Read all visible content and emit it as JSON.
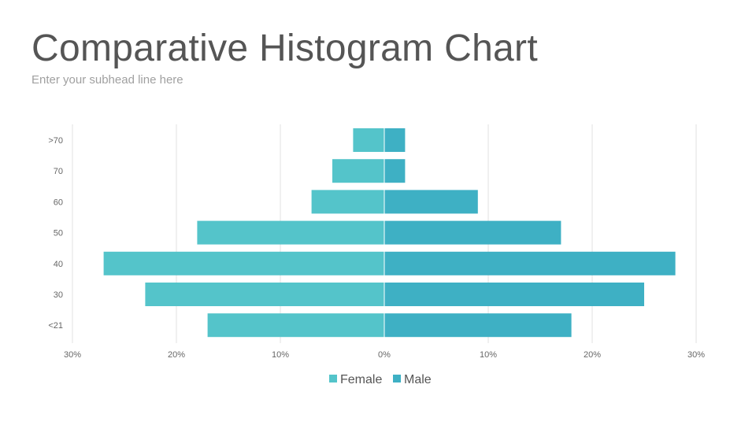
{
  "header": {
    "title": "Comparative Histogram Chart",
    "subtitle": "Enter your subhead line here"
  },
  "colors": {
    "female": "#54c4ca",
    "male": "#3eb0c4",
    "grid": "#e0e0e0"
  },
  "chart_data": {
    "type": "bar",
    "orientation": "horizontal",
    "layout": "diverging",
    "categories": [
      ">70",
      "70",
      "60",
      "50",
      "40",
      "30",
      "<21"
    ],
    "series": [
      {
        "name": "Female",
        "values": [
          3,
          5,
          7,
          18,
          27,
          23,
          17
        ]
      },
      {
        "name": "Male",
        "values": [
          2,
          2,
          9,
          17,
          28,
          25,
          18
        ]
      }
    ],
    "xlim": [
      -30,
      30
    ],
    "xticks": [
      -30,
      -20,
      -10,
      0,
      10,
      20,
      30
    ],
    "xtick_labels": [
      "30%",
      "20%",
      "10%",
      "0%",
      "10%",
      "20%",
      "30%"
    ],
    "unit": "%",
    "grid": "vertical",
    "legend": "bottom"
  }
}
